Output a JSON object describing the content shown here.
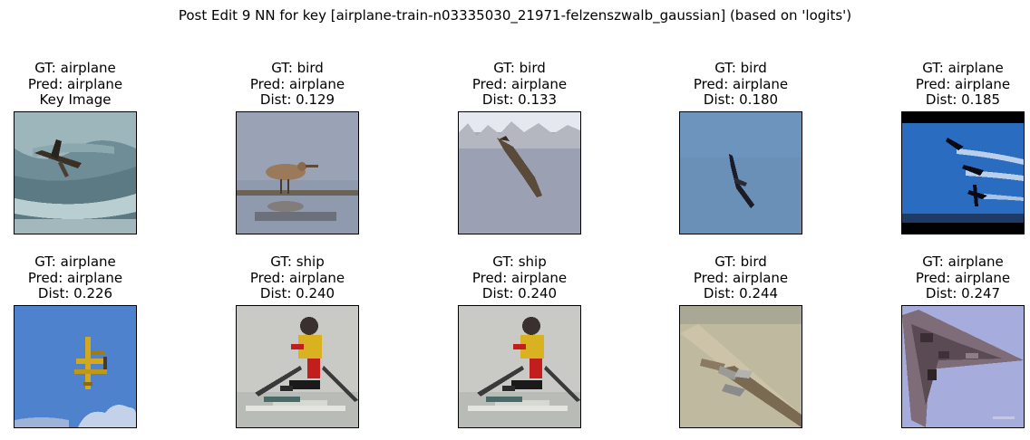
{
  "figure": {
    "suptitle": "Post Edit 9 NN for key [airplane-train-n03335030_21971-felzenszwalb_gaussian] (based on 'logits')"
  },
  "panels": [
    {
      "gt": "GT: airplane",
      "pred": "Pred: airplane",
      "extra": "Key Image",
      "scene": "airplane-cloudy-sky",
      "colors": {
        "bg": "#6f8d96",
        "accent": "#3a3026"
      }
    },
    {
      "gt": "GT: bird",
      "pred": "Pred: airplane",
      "extra": "Dist: 0.129",
      "scene": "bird-wading-water",
      "colors": {
        "bg": "#9aa3b6",
        "accent": "#9a7a5a"
      }
    },
    {
      "gt": "GT: bird",
      "pred": "Pred: airplane",
      "extra": "Dist: 0.133",
      "scene": "bird-gliding-grey",
      "colors": {
        "bg": "#a7acb8",
        "accent": "#5a4a3a"
      }
    },
    {
      "gt": "GT: bird",
      "pred": "Pred: airplane",
      "extra": "Dist: 0.180",
      "scene": "bird-flying-blue-sky",
      "colors": {
        "bg": "#6a90b8",
        "accent": "#1c1c26"
      }
    },
    {
      "gt": "GT: airplane",
      "pred": "Pred: airplane",
      "extra": "Dist: 0.185",
      "scene": "jets-formation-letterbox",
      "colors": {
        "bg": "#2a6cc0",
        "accent": "#0a0a14"
      }
    },
    {
      "gt": "GT: airplane",
      "pred": "Pred: airplane",
      "extra": "Dist: 0.226",
      "scene": "yellow-biplane-blue-sky",
      "colors": {
        "bg": "#4f82cc",
        "accent": "#d2a820"
      }
    },
    {
      "gt": "GT: ship",
      "pred": "Pred: airplane",
      "extra": "Dist: 0.240",
      "scene": "rowing-sculler",
      "colors": {
        "bg": "#c9cac6",
        "accent": "#d8b220"
      }
    },
    {
      "gt": "GT: ship",
      "pred": "Pred: airplane",
      "extra": "Dist: 0.240",
      "scene": "rowing-sculler",
      "colors": {
        "bg": "#c9cac6",
        "accent": "#d8b220"
      }
    },
    {
      "gt": "GT: bird",
      "pred": "Pred: airplane",
      "extra": "Dist: 0.244",
      "scene": "birds-sand-beach",
      "colors": {
        "bg": "#bfb9a0",
        "accent": "#8a7a62"
      }
    },
    {
      "gt": "GT: airplane",
      "pred": "Pred: airplane",
      "extra": "Dist: 0.247",
      "scene": "delta-wing-jet",
      "colors": {
        "bg": "#a6acdc",
        "accent": "#5a4a54"
      }
    }
  ]
}
